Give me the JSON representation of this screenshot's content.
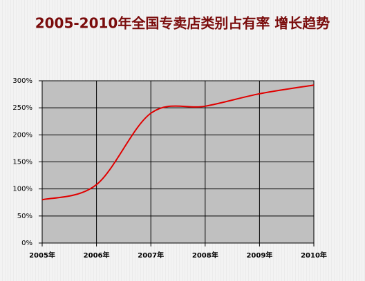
{
  "chart_data": {
    "type": "line",
    "title": "2005-2010年全国专卖店类别占有率 增长趋势",
    "categories": [
      "2005年",
      "2006年",
      "2007年",
      "2008年",
      "2009年",
      "2010年"
    ],
    "values": [
      80,
      108,
      240,
      253,
      276,
      292
    ],
    "color": "#e00000",
    "ylim": [
      0,
      300
    ],
    "yticks": [
      {
        "value": 0,
        "label": "0%"
      },
      {
        "value": 50,
        "label": "50%"
      },
      {
        "value": 100,
        "label": "100%"
      },
      {
        "value": 150,
        "label": "150%"
      },
      {
        "value": 200,
        "label": "200%"
      },
      {
        "value": 250,
        "label": "250%"
      },
      {
        "value": 300,
        "label": "300%"
      }
    ],
    "grid": true
  }
}
